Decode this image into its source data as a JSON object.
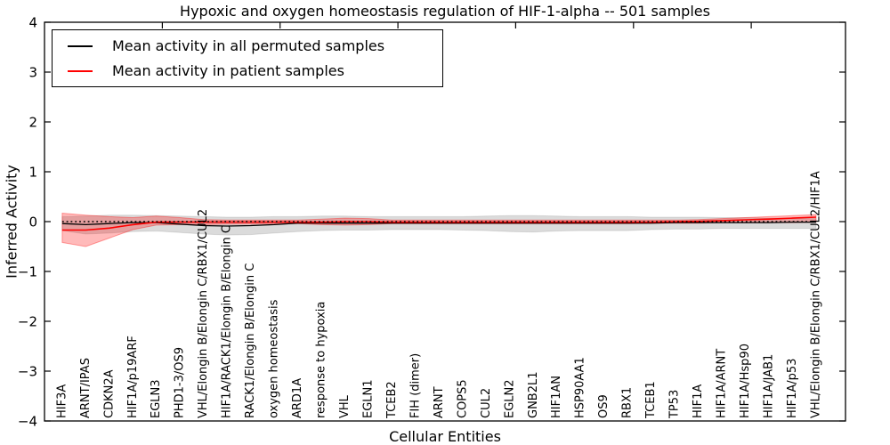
{
  "chart_data": {
    "type": "line",
    "title": "Hypoxic and oxygen homeostasis regulation of HIF-1-alpha -- 501 samples",
    "xlabel": "Cellular Entities",
    "ylabel": "Inferred Activity",
    "ylim": [
      -4,
      4
    ],
    "xlim": [
      0,
      34
    ],
    "x_offset": 0.75,
    "grid": false,
    "legend_position": "upper left",
    "y_ticks": [
      -4,
      -3,
      -2,
      -1,
      0,
      1,
      2,
      3,
      4
    ],
    "y_tick_labels": [
      "−4",
      "−3",
      "−2",
      "−1",
      "0",
      "1",
      "2",
      "3",
      "4"
    ],
    "x_major_tick_positions": [
      5,
      10,
      15,
      20,
      25,
      30
    ],
    "categories": [
      "HIF3A",
      "ARNT/IPAS",
      "CDKN2A",
      "HIF1A/p19ARF",
      "EGLN3",
      "PHD1-3/OS9",
      "VHL/Elongin B/Elongin C/RBX1/CUL2",
      "HIF1A/RACK1/Elongin B/Elongin C",
      "RACK1/Elongin B/Elongin C",
      "oxygen homeostasis",
      "ARD1A",
      "response to hypoxia",
      "VHL",
      "EGLN1",
      "TCEB2",
      "FIH (dimer)",
      "ARNT",
      "COPS5",
      "CUL2",
      "EGLN2",
      "GNB2L1",
      "HIF1AN",
      "HSP90AA1",
      "OS9",
      "RBX1",
      "TCEB1",
      "TP53",
      "HIF1A",
      "HIF1A/ARNT",
      "HIF1A/Hsp90",
      "HIF1A/JAB1",
      "HIF1A/p53",
      "VHL/Elongin B/Elongin C/RBX1/CUL2/HIF1A"
    ],
    "series": [
      {
        "name": "Mean activity in all permuted samples",
        "color": "#000000",
        "line_style": "solid",
        "values": [
          -0.04,
          -0.06,
          -0.04,
          -0.02,
          -0.02,
          -0.05,
          -0.08,
          -0.09,
          -0.08,
          -0.06,
          -0.03,
          -0.03,
          -0.03,
          -0.03,
          -0.03,
          -0.03,
          -0.03,
          -0.03,
          -0.03,
          -0.03,
          -0.03,
          -0.03,
          -0.03,
          -0.03,
          -0.03,
          -0.03,
          -0.02,
          -0.02,
          -0.02,
          -0.02,
          -0.02,
          -0.01,
          -0.01
        ],
        "band": {
          "upper": [
            0.1,
            0.11,
            0.13,
            0.13,
            0.12,
            0.11,
            0.1,
            0.09,
            0.09,
            0.1,
            0.1,
            0.11,
            0.11,
            0.1,
            0.1,
            0.1,
            0.1,
            0.1,
            0.11,
            0.12,
            0.12,
            0.11,
            0.1,
            0.1,
            0.1,
            0.09,
            0.09,
            0.09,
            0.08,
            0.08,
            0.07,
            0.07,
            0.06
          ],
          "lower": [
            -0.18,
            -0.25,
            -0.23,
            -0.2,
            -0.19,
            -0.22,
            -0.25,
            -0.27,
            -0.26,
            -0.23,
            -0.2,
            -0.18,
            -0.17,
            -0.17,
            -0.16,
            -0.16,
            -0.16,
            -0.17,
            -0.18,
            -0.2,
            -0.21,
            -0.19,
            -0.18,
            -0.18,
            -0.18,
            -0.16,
            -0.15,
            -0.15,
            -0.14,
            -0.14,
            -0.14,
            -0.14,
            -0.14
          ],
          "fill": "rgba(0,0,0,0.14)",
          "edge": "rgba(0,0,0,0.10)"
        }
      },
      {
        "name": "Mean activity in patient samples",
        "color": "#ff0000",
        "line_style": "solid",
        "values": [
          -0.17,
          -0.17,
          -0.13,
          -0.06,
          -0.01,
          -0.01,
          -0.01,
          -0.01,
          -0.01,
          -0.01,
          -0.01,
          -0.01,
          0.0,
          0.0,
          -0.01,
          -0.01,
          -0.01,
          -0.01,
          -0.01,
          -0.01,
          -0.01,
          -0.01,
          -0.01,
          -0.01,
          -0.01,
          -0.01,
          0.0,
          0.005,
          0.02,
          0.035,
          0.05,
          0.07,
          0.09
        ],
        "band": {
          "upper": [
            0.17,
            0.13,
            0.1,
            0.08,
            0.11,
            0.08,
            0.04,
            0.03,
            0.03,
            0.03,
            0.03,
            0.05,
            0.07,
            0.06,
            0.03,
            0.03,
            0.03,
            0.03,
            0.03,
            0.03,
            0.03,
            0.03,
            0.03,
            0.03,
            0.03,
            0.03,
            0.03,
            0.04,
            0.06,
            0.08,
            0.1,
            0.12,
            0.14
          ],
          "lower": [
            -0.42,
            -0.5,
            -0.33,
            -0.16,
            -0.07,
            -0.06,
            -0.06,
            -0.05,
            -0.05,
            -0.04,
            -0.04,
            -0.06,
            -0.07,
            -0.06,
            -0.04,
            -0.04,
            -0.04,
            -0.04,
            -0.04,
            -0.04,
            -0.04,
            -0.04,
            -0.04,
            -0.04,
            -0.04,
            -0.03,
            -0.03,
            -0.03,
            -0.02,
            -0.02,
            -0.02,
            -0.02,
            -0.01
          ],
          "fill": "rgba(255,0,0,0.27)",
          "edge": "rgba(255,0,0,0.35)"
        }
      }
    ],
    "reference_line": {
      "y": 0,
      "style": "dotted",
      "color": "#000000"
    }
  },
  "colors": {
    "background": "#ffffff",
    "axis": "#000000",
    "permuted_line": "#000000",
    "patient_line": "#ff0000"
  }
}
